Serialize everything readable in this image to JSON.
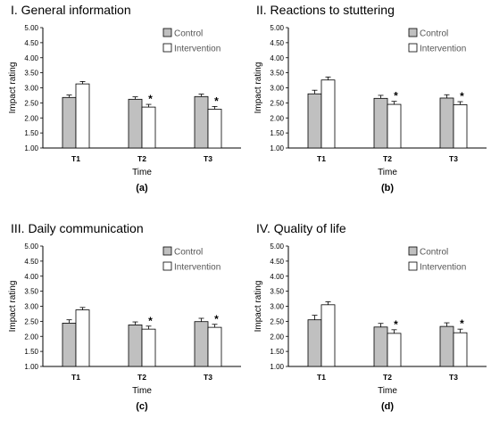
{
  "chart_data": [
    {
      "type": "bar",
      "title": "I. General information",
      "xlabel": "Time",
      "ylabel": "Impact rating",
      "sublabel": "(a)",
      "categories": [
        "T1",
        "T2",
        "T3"
      ],
      "ylim": [
        1.0,
        5.0
      ],
      "yticks": [
        "1.00",
        "1.50",
        "2.00",
        "2.50",
        "3.00",
        "3.50",
        "4.00",
        "4.50",
        "5.00"
      ],
      "legend_position": "top-right",
      "series": [
        {
          "name": "Control",
          "color": "#c0c0c0",
          "values": [
            2.68,
            2.62,
            2.71
          ],
          "errors": [
            0.08,
            0.08,
            0.08
          ]
        },
        {
          "name": "Intervention",
          "color": "#ffffff",
          "values": [
            3.13,
            2.36,
            2.29
          ],
          "errors": [
            0.08,
            0.09,
            0.09
          ]
        }
      ],
      "annotations": [
        {
          "text": "*",
          "category": "T2",
          "series": "Intervention"
        },
        {
          "text": "*",
          "category": "T3",
          "series": "Intervention"
        }
      ]
    },
    {
      "type": "bar",
      "title": "II. Reactions to stuttering",
      "xlabel": "Time",
      "ylabel": "Impact rating",
      "sublabel": "(b)",
      "categories": [
        "T1",
        "T2",
        "T3"
      ],
      "ylim": [
        1.0,
        5.0
      ],
      "yticks": [
        "1.00",
        "1.50",
        "2.00",
        "2.50",
        "3.00",
        "3.50",
        "4.00",
        "4.50",
        "5.00"
      ],
      "legend_position": "top-right",
      "series": [
        {
          "name": "Control",
          "color": "#c0c0c0",
          "values": [
            2.8,
            2.65,
            2.66
          ],
          "errors": [
            0.12,
            0.1,
            0.11
          ]
        },
        {
          "name": "Intervention",
          "color": "#ffffff",
          "values": [
            3.26,
            2.45,
            2.44
          ],
          "errors": [
            0.1,
            0.1,
            0.1
          ]
        }
      ],
      "annotations": [
        {
          "text": "*",
          "category": "T2",
          "series": "Intervention"
        },
        {
          "text": "*",
          "category": "T3",
          "series": "Intervention"
        }
      ]
    },
    {
      "type": "bar",
      "title": "III. Daily communication",
      "xlabel": "Time",
      "ylabel": "Impact rating",
      "sublabel": "(c)",
      "categories": [
        "T1",
        "T2",
        "T3"
      ],
      "ylim": [
        1.0,
        5.0
      ],
      "yticks": [
        "1.00",
        "1.50",
        "2.00",
        "2.50",
        "3.00",
        "3.50",
        "4.00",
        "4.50",
        "5.00"
      ],
      "legend_position": "top-right",
      "series": [
        {
          "name": "Control",
          "color": "#c0c0c0",
          "values": [
            2.44,
            2.38,
            2.49
          ],
          "errors": [
            0.11,
            0.1,
            0.11
          ]
        },
        {
          "name": "Intervention",
          "color": "#ffffff",
          "values": [
            2.88,
            2.24,
            2.3
          ],
          "errors": [
            0.08,
            0.1,
            0.1
          ]
        }
      ],
      "annotations": [
        {
          "text": "*",
          "category": "T2",
          "series": "Intervention"
        },
        {
          "text": "*",
          "category": "T3",
          "series": "Intervention"
        }
      ]
    },
    {
      "type": "bar",
      "title": "IV. Quality of life",
      "xlabel": "Time",
      "ylabel": "Impact rating",
      "sublabel": "(d)",
      "categories": [
        "T1",
        "T2",
        "T3"
      ],
      "ylim": [
        1.0,
        5.0
      ],
      "yticks": [
        "1.00",
        "1.50",
        "2.00",
        "2.50",
        "3.00",
        "3.50",
        "4.00",
        "4.50",
        "5.00"
      ],
      "legend_position": "top-right",
      "series": [
        {
          "name": "Control",
          "color": "#c0c0c0",
          "values": [
            2.55,
            2.31,
            2.33
          ],
          "errors": [
            0.15,
            0.12,
            0.12
          ]
        },
        {
          "name": "Intervention",
          "color": "#ffffff",
          "values": [
            3.05,
            2.1,
            2.12
          ],
          "errors": [
            0.1,
            0.12,
            0.12
          ]
        }
      ],
      "annotations": [
        {
          "text": "*",
          "category": "T2",
          "series": "Intervention"
        },
        {
          "text": "*",
          "category": "T3",
          "series": "Intervention"
        }
      ]
    }
  ]
}
